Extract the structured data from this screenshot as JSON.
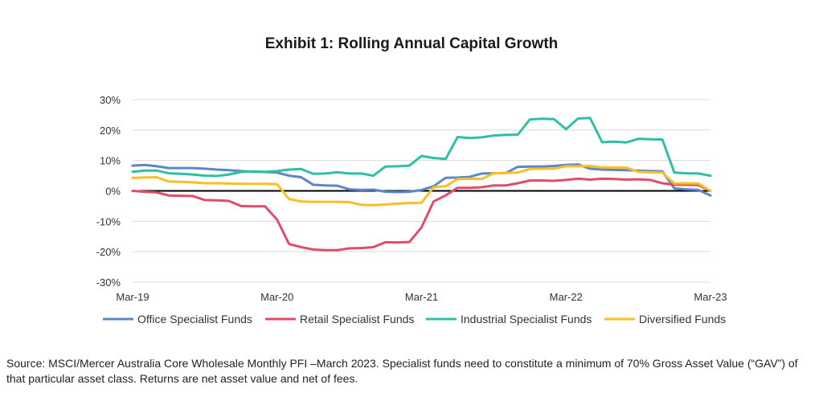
{
  "chart_data": {
    "type": "line",
    "title": "Exhibit 1: Rolling Annual Capital Growth",
    "xlabel": "",
    "ylabel": "",
    "ylim": [
      -30,
      30
    ],
    "yticks": [
      30,
      20,
      10,
      0,
      -10,
      -20,
      -30
    ],
    "ytick_labels": [
      "30%",
      "20%",
      "10%",
      "0%",
      "-10%",
      "-20%",
      "-30%"
    ],
    "x_tick_labels": [
      "Mar-19",
      "Mar-20",
      "Mar-21",
      "Mar-22",
      "Mar-23"
    ],
    "x_tick_months": [
      "2019-03",
      "2020-03",
      "2021-03",
      "2022-03",
      "2023-03"
    ],
    "x": [
      "2019-03",
      "2019-04",
      "2019-05",
      "2019-06",
      "2019-07",
      "2019-08",
      "2019-09",
      "2019-10",
      "2019-11",
      "2019-12",
      "2020-01",
      "2020-02",
      "2020-03",
      "2020-04",
      "2020-05",
      "2020-06",
      "2020-07",
      "2020-08",
      "2020-09",
      "2020-10",
      "2020-11",
      "2020-12",
      "2021-01",
      "2021-02",
      "2021-03",
      "2021-04",
      "2021-05",
      "2021-06",
      "2021-07",
      "2021-08",
      "2021-09",
      "2021-10",
      "2021-11",
      "2021-12",
      "2022-01",
      "2022-02",
      "2022-03",
      "2022-04",
      "2022-05",
      "2022-06",
      "2022-07",
      "2022-08",
      "2022-09",
      "2022-10",
      "2022-11",
      "2022-12",
      "2023-01",
      "2023-02",
      "2023-03"
    ],
    "grid": true,
    "legend": "bottom",
    "series": [
      {
        "name": "Office Specialist Funds",
        "color": "#5b86c9",
        "values": [
          8.3,
          8.5,
          8.1,
          7.5,
          7.5,
          7.5,
          7.3,
          7.0,
          6.8,
          6.5,
          6.3,
          6.2,
          6.0,
          5.0,
          4.5,
          2.0,
          1.8,
          1.7,
          0.5,
          0.3,
          0.4,
          -0.3,
          -0.4,
          -0.3,
          0.3,
          1.5,
          4.3,
          4.4,
          4.6,
          5.7,
          5.8,
          5.9,
          7.9,
          8.0,
          8.0,
          8.2,
          8.5,
          8.7,
          7.3,
          7.0,
          6.9,
          6.8,
          6.7,
          6.5,
          6.4,
          0.8,
          0.5,
          0.3,
          -1.5
        ]
      },
      {
        "name": "Retail Specialist Funds",
        "color": "#e14c6b",
        "values": [
          0.0,
          -0.3,
          -0.5,
          -1.5,
          -1.6,
          -1.7,
          -3.0,
          -3.1,
          -3.3,
          -5.0,
          -5.1,
          -5.1,
          -9.5,
          -17.5,
          -18.5,
          -19.3,
          -19.5,
          -19.5,
          -18.9,
          -18.8,
          -18.5,
          -16.9,
          -17.0,
          -16.8,
          -12.0,
          -3.5,
          -1.5,
          1.0,
          1.0,
          1.2,
          1.8,
          1.8,
          2.5,
          3.4,
          3.4,
          3.3,
          3.6,
          4.0,
          3.7,
          4.0,
          3.9,
          3.7,
          3.8,
          3.6,
          2.5,
          2.0,
          2.0,
          1.9,
          0.0
        ]
      },
      {
        "name": "Industrial Specialist Funds",
        "color": "#2fbfa7",
        "values": [
          6.3,
          6.7,
          6.7,
          5.8,
          5.6,
          5.4,
          5.0,
          4.9,
          5.4,
          6.2,
          6.4,
          6.3,
          6.5,
          7.0,
          7.2,
          5.6,
          5.7,
          6.1,
          5.7,
          5.7,
          5.0,
          8.0,
          8.1,
          8.3,
          11.5,
          10.8,
          10.5,
          17.7,
          17.4,
          17.6,
          18.2,
          18.4,
          18.5,
          23.5,
          23.7,
          23.6,
          20.3,
          23.8,
          24.0,
          16.0,
          16.2,
          15.9,
          17.1,
          17.0,
          16.9,
          6.0,
          5.8,
          5.7,
          5.0
        ]
      },
      {
        "name": "Diversified Funds",
        "color": "#fbbf22",
        "values": [
          4.3,
          4.4,
          4.5,
          3.1,
          3.0,
          2.8,
          2.5,
          2.5,
          2.4,
          2.3,
          2.3,
          2.3,
          2.2,
          -2.7,
          -3.5,
          -3.6,
          -3.6,
          -3.6,
          -3.7,
          -4.6,
          -4.7,
          -4.5,
          -4.2,
          -4.0,
          -3.9,
          1.2,
          1.5,
          3.9,
          4.0,
          3.9,
          5.8,
          5.9,
          6.0,
          7.2,
          7.3,
          7.3,
          8.1,
          8.1,
          8.2,
          7.7,
          7.7,
          7.7,
          6.3,
          6.1,
          6.0,
          2.4,
          2.5,
          2.4,
          0.0
        ]
      }
    ]
  },
  "footer": {
    "source_line1": "Source: MSCI/Mercer Australia Core Wholesale Monthly PFI –March 2023. Specialist funds need to constitute a minimum of 70% Gross Asset Value (“GAV”) of",
    "source_line2": "that particular asset class. Returns are net asset value and net of fees."
  }
}
